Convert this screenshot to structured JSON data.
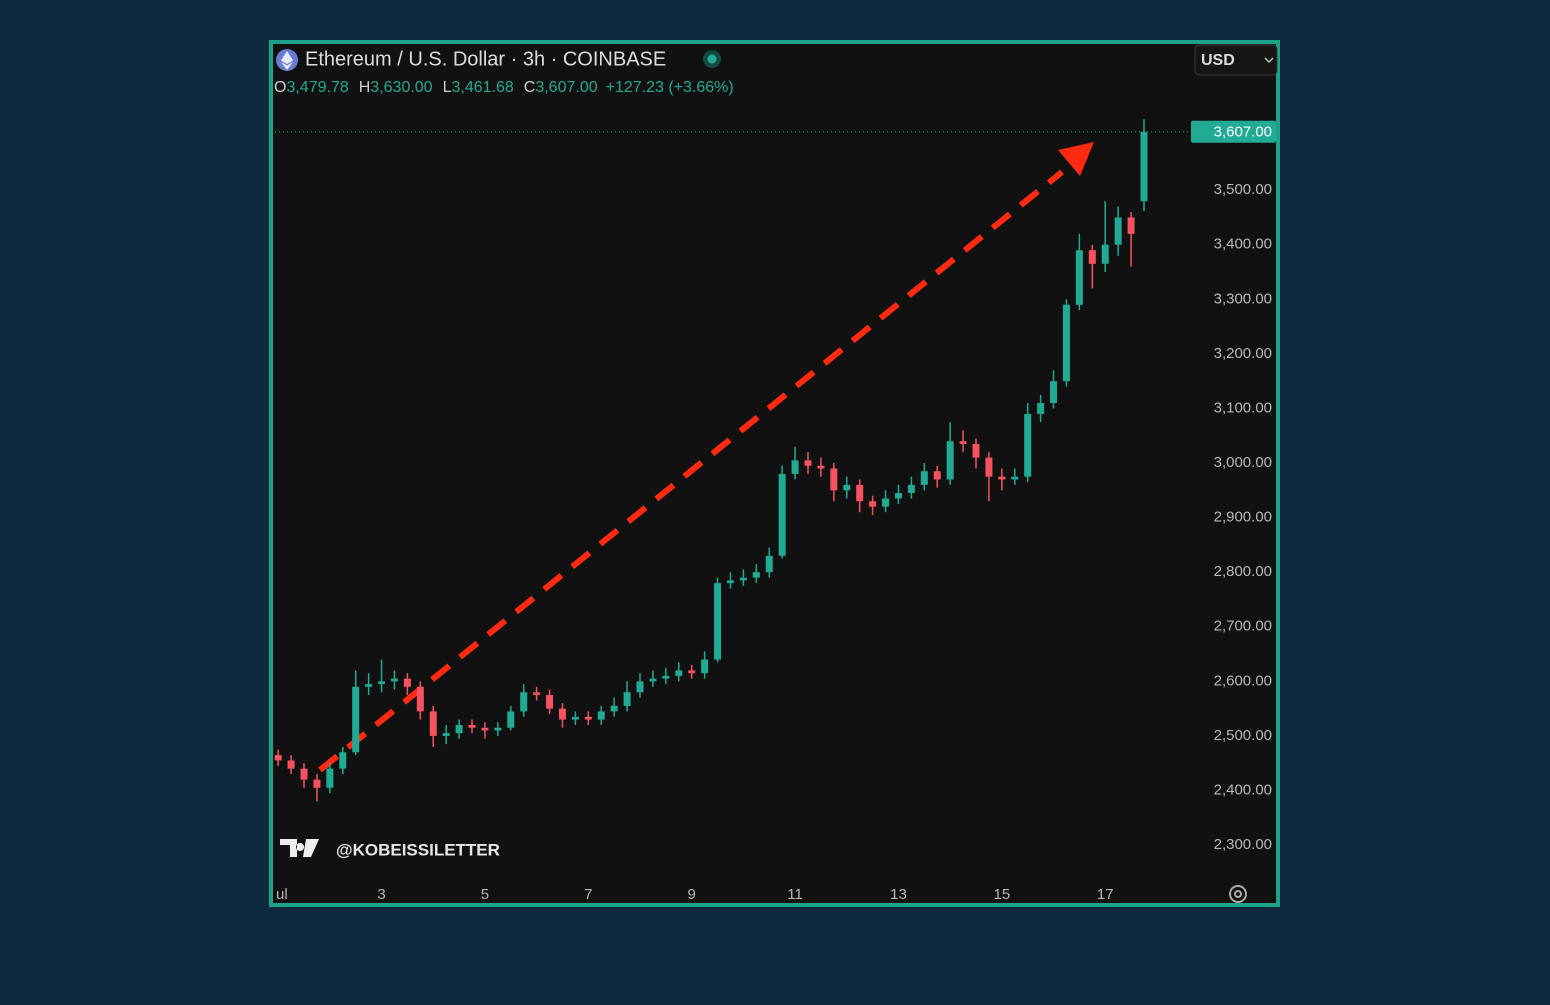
{
  "chart_data": {
    "type": "candlestick",
    "title": "Ethereum / U.S. Dollar · 3h · COINBASE",
    "ohlc_header": [
      {
        "key": "O",
        "value": "3,479.78"
      },
      {
        "key": "H",
        "value": "3,630.00"
      },
      {
        "key": "L",
        "value": "3,461.68"
      },
      {
        "key": "C",
        "value": "3,607.00"
      }
    ],
    "change": "+127.23 (+3.66%)",
    "currency": "USD",
    "watermark": "@KOBEISSILETTER",
    "up_color": "#22ab94",
    "down_color": "#f7525f",
    "last_price": {
      "value": 3607,
      "label": "3,607.00"
    },
    "x": [
      1,
      1.25,
      1.5,
      1.75,
      2,
      2.25,
      2.5,
      2.75,
      3,
      3.25,
      3.5,
      3.75,
      4,
      4.25,
      4.5,
      4.75,
      5,
      5.25,
      5.5,
      5.75,
      6,
      6.25,
      6.5,
      6.75,
      7,
      7.25,
      7.5,
      7.75,
      8,
      8.25,
      8.5,
      8.75,
      9,
      9.25,
      9.5,
      9.75,
      10,
      10.25,
      10.5,
      10.75,
      11,
      11.25,
      11.5,
      11.75,
      12,
      12.25,
      12.5,
      12.75,
      13,
      13.25,
      13.5,
      13.75,
      14,
      14.25,
      14.5,
      14.75,
      15,
      15.25,
      15.5,
      15.75,
      16,
      16.25,
      16.5,
      16.75,
      17,
      17.25,
      17.5,
      17.75
    ],
    "open": [
      2465,
      2455,
      2440,
      2420,
      2405,
      2440,
      2470,
      2590,
      2595,
      2600,
      2605,
      2590,
      2545,
      2500,
      2505,
      2520,
      2515,
      2510,
      2515,
      2545,
      2580,
      2575,
      2550,
      2530,
      2535,
      2530,
      2545,
      2555,
      2580,
      2600,
      2605,
      2610,
      2620,
      2615,
      2640,
      2780,
      2785,
      2790,
      2800,
      2830,
      2980,
      3005,
      2995,
      2990,
      2950,
      2960,
      2930,
      2920,
      2935,
      2945,
      2960,
      2985,
      2970,
      3040,
      3035,
      3010,
      2975,
      2970,
      2975,
      3090,
      3110,
      3150,
      3290,
      3390,
      3365,
      3400,
      3450,
      3479.78
    ],
    "high": [
      2475,
      2465,
      2450,
      2430,
      2450,
      2480,
      2620,
      2615,
      2640,
      2620,
      2615,
      2600,
      2555,
      2520,
      2530,
      2530,
      2525,
      2525,
      2555,
      2595,
      2590,
      2585,
      2560,
      2545,
      2545,
      2555,
      2570,
      2600,
      2615,
      2620,
      2625,
      2635,
      2630,
      2655,
      2790,
      2800,
      2805,
      2815,
      2845,
      2995,
      3030,
      3020,
      3010,
      3000,
      2975,
      2970,
      2940,
      2950,
      2960,
      2975,
      3000,
      2995,
      3075,
      3060,
      3045,
      3020,
      2990,
      2990,
      3110,
      3125,
      3170,
      3300,
      3420,
      3400,
      3480,
      3470,
      3460,
      3630
    ],
    "low": [
      2445,
      2430,
      2405,
      2380,
      2395,
      2430,
      2465,
      2575,
      2580,
      2585,
      2575,
      2530,
      2480,
      2485,
      2495,
      2505,
      2495,
      2500,
      2510,
      2535,
      2565,
      2540,
      2515,
      2520,
      2520,
      2520,
      2535,
      2545,
      2570,
      2590,
      2595,
      2600,
      2605,
      2605,
      2635,
      2770,
      2775,
      2780,
      2790,
      2825,
      2970,
      2980,
      2975,
      2930,
      2935,
      2910,
      2905,
      2910,
      2925,
      2935,
      2950,
      2955,
      2960,
      3020,
      2990,
      2930,
      2950,
      2960,
      2965,
      3075,
      3100,
      3140,
      3280,
      3320,
      3350,
      3380,
      3360,
      3461.68
    ],
    "close": [
      2455,
      2440,
      2420,
      2405,
      2440,
      2470,
      2590,
      2595,
      2600,
      2605,
      2590,
      2545,
      2500,
      2505,
      2520,
      2515,
      2510,
      2515,
      2545,
      2580,
      2575,
      2550,
      2530,
      2535,
      2530,
      2545,
      2555,
      2580,
      2600,
      2605,
      2610,
      2620,
      2615,
      2640,
      2780,
      2785,
      2790,
      2800,
      2830,
      2980,
      3005,
      2995,
      2990,
      2950,
      2960,
      2930,
      2920,
      2935,
      2945,
      2960,
      2985,
      2970,
      3040,
      3035,
      3010,
      2975,
      2970,
      2975,
      3090,
      3110,
      3150,
      3290,
      3390,
      3365,
      3400,
      3450,
      3420,
      3607
    ],
    "xlim": [
      0.9,
      18.64
    ],
    "ylim": [
      2236,
      3766
    ],
    "xticks": [
      {
        "value": 1,
        "label": "ul"
      },
      3,
      5,
      7,
      9,
      11,
      13,
      15,
      17
    ],
    "yticks": [
      {
        "value": 2300,
        "label": "2,300.00"
      },
      {
        "value": 2400,
        "label": "2,400.00"
      },
      {
        "value": 2500,
        "label": "2,500.00"
      },
      {
        "value": 2600,
        "label": "2,600.00"
      },
      {
        "value": 2700,
        "label": "2,700.00"
      },
      {
        "value": 2800,
        "label": "2,800.00"
      },
      {
        "value": 2900,
        "label": "2,900.00"
      },
      {
        "value": 3000,
        "label": "3,000.00"
      },
      {
        "value": 3100,
        "label": "3,100.00"
      },
      {
        "value": 3200,
        "label": "3,200.00"
      },
      {
        "value": 3300,
        "label": "3,300.00"
      },
      {
        "value": 3400,
        "label": "3,400.00"
      },
      {
        "value": 3500,
        "label": "3,500.00"
      }
    ]
  }
}
